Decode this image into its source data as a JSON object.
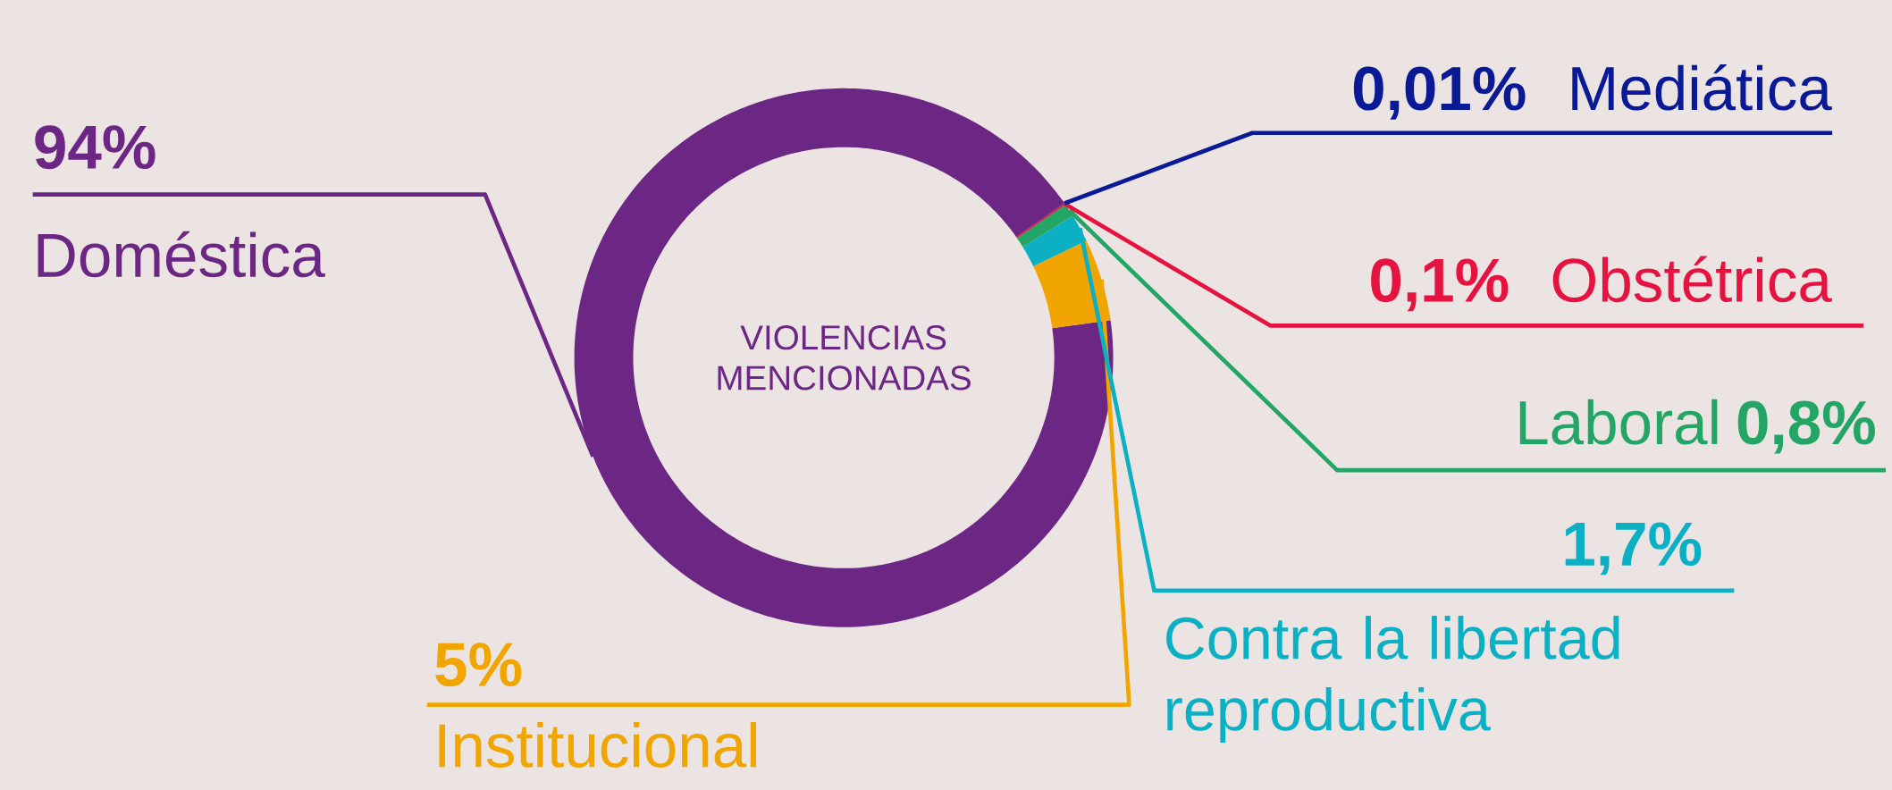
{
  "chart_data": {
    "type": "donut",
    "title": "VIOLENCIAS MENCIONADAS",
    "categories": [
      "Doméstica",
      "Institucional",
      "Contra la libertad reproductiva",
      "Laboral",
      "Obstétrica",
      "Mediática"
    ],
    "values": [
      94,
      5,
      1.7,
      0.8,
      0.1,
      0.01
    ],
    "value_labels": [
      "94%",
      "5%",
      "1,7%",
      "0,8%",
      "0,1%",
      "0,01%"
    ],
    "colors": [
      "#6b2783",
      "#f0a500",
      "#0bb0c4",
      "#22a565",
      "#e5133f",
      "#0a1a96"
    ]
  }
}
